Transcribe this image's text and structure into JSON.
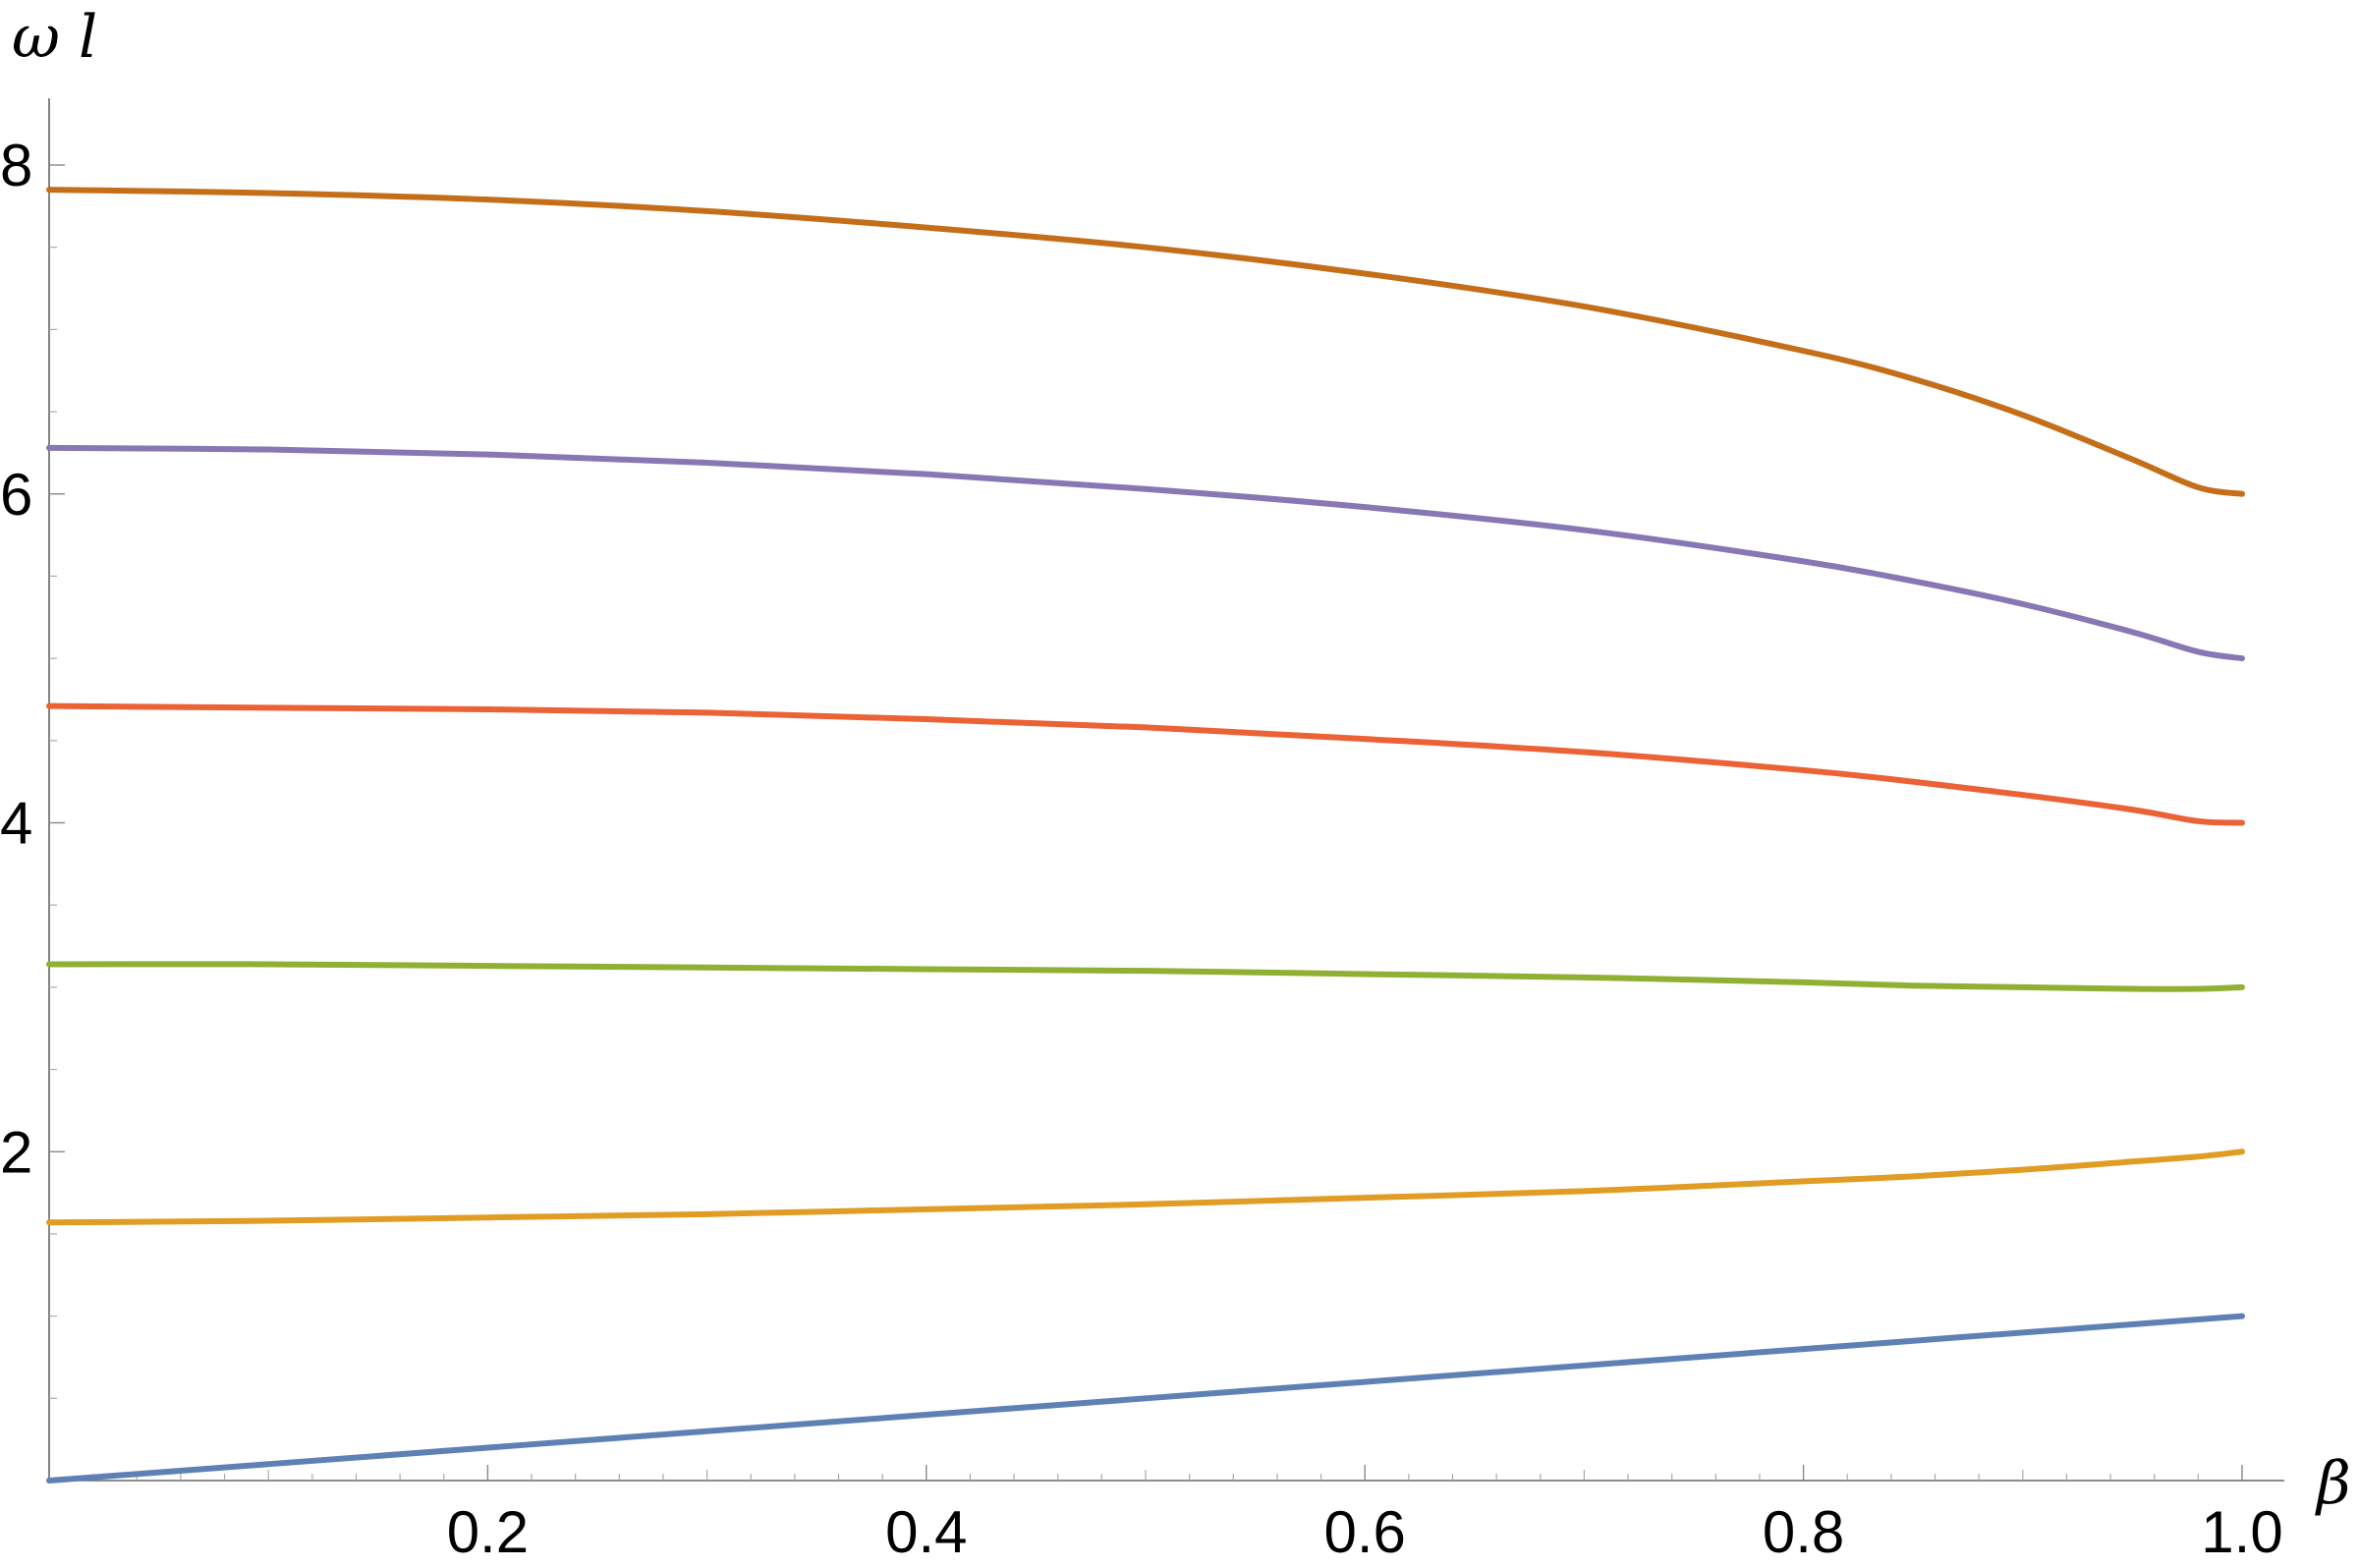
{
  "chart_data": {
    "type": "line",
    "title": "",
    "xlabel": "β",
    "ylabel": "ω l",
    "xlim": [
      0,
      1
    ],
    "ylim": [
      0,
      8.3
    ],
    "x_ticks": [
      0.2,
      0.4,
      0.6,
      0.8,
      1.0
    ],
    "x_tick_labels": [
      "0.2",
      "0.4",
      "0.6",
      "0.8",
      "1.0"
    ],
    "y_ticks": [
      2,
      4,
      6,
      8
    ],
    "y_tick_labels": [
      "2",
      "4",
      "6",
      "8"
    ],
    "grid": false,
    "legend": "none",
    "x": [
      0.0,
      0.1,
      0.2,
      0.3,
      0.4,
      0.5,
      0.6,
      0.7,
      0.8,
      0.85,
      0.9,
      0.95,
      0.98,
      1.0
    ],
    "series": [
      {
        "color": "#5e81b5",
        "values": [
          0.0,
          0.1,
          0.2,
          0.3,
          0.4,
          0.5,
          0.6,
          0.7,
          0.8,
          0.85,
          0.9,
          0.95,
          0.98,
          1.0
        ]
      },
      {
        "color": "#e19c24",
        "values": [
          1.57,
          1.58,
          1.6,
          1.62,
          1.65,
          1.68,
          1.72,
          1.76,
          1.82,
          1.85,
          1.89,
          1.94,
          1.97,
          2.0
        ]
      },
      {
        "color": "#8fb032",
        "values": [
          3.14,
          3.14,
          3.13,
          3.12,
          3.11,
          3.1,
          3.08,
          3.06,
          3.03,
          3.01,
          3.0,
          2.99,
          2.99,
          3.0
        ]
      },
      {
        "color": "#eb6235",
        "values": [
          4.71,
          4.7,
          4.69,
          4.67,
          4.63,
          4.58,
          4.51,
          4.43,
          4.32,
          4.25,
          4.17,
          4.08,
          4.01,
          4.0
        ]
      },
      {
        "color": "#8778b3",
        "values": [
          6.28,
          6.27,
          6.24,
          6.19,
          6.12,
          6.03,
          5.92,
          5.78,
          5.59,
          5.47,
          5.33,
          5.16,
          5.04,
          5.0
        ]
      },
      {
        "color": "#c56e1a",
        "values": [
          7.85,
          7.83,
          7.79,
          7.72,
          7.62,
          7.5,
          7.34,
          7.14,
          6.87,
          6.7,
          6.48,
          6.21,
          6.04,
          6.0
        ]
      }
    ]
  }
}
